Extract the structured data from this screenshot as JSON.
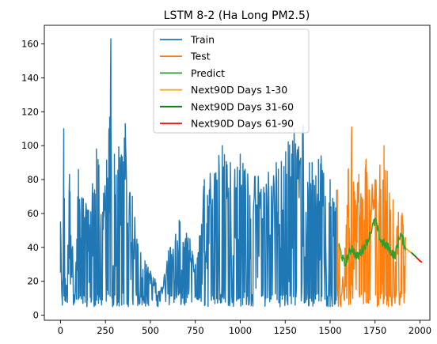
{
  "chart_data": {
    "type": "line",
    "title": "LSTM 8-2 (Ha Long PM2.5)",
    "xlabel": "",
    "ylabel": "",
    "xlim": [
      -90,
      2055
    ],
    "ylim": [
      -3,
      171
    ],
    "xticks": [
      0,
      250,
      500,
      750,
      1000,
      1250,
      1500,
      1750,
      2000
    ],
    "yticks": [
      0,
      20,
      40,
      60,
      80,
      100,
      120,
      140,
      160
    ],
    "grid": false,
    "legend_position": "top-center",
    "series": [
      {
        "name": "Train",
        "color": "#1f77b4",
        "x_range": [
          0,
          1537
        ],
        "keypoints": [
          {
            "x": 0,
            "y": 55
          },
          {
            "x": 10,
            "y": 6
          },
          {
            "x": 18,
            "y": 110
          },
          {
            "x": 30,
            "y": 8
          },
          {
            "x": 50,
            "y": 83
          },
          {
            "x": 80,
            "y": 10
          },
          {
            "x": 100,
            "y": 86
          },
          {
            "x": 150,
            "y": 62
          },
          {
            "x": 200,
            "y": 98
          },
          {
            "x": 240,
            "y": 72
          },
          {
            "x": 270,
            "y": 110
          },
          {
            "x": 280,
            "y": 163
          },
          {
            "x": 290,
            "y": 5
          },
          {
            "x": 300,
            "y": 95
          },
          {
            "x": 360,
            "y": 113
          },
          {
            "x": 400,
            "y": 70
          },
          {
            "x": 430,
            "y": 42
          },
          {
            "x": 470,
            "y": 32
          },
          {
            "x": 500,
            "y": 26
          },
          {
            "x": 560,
            "y": 16
          },
          {
            "x": 600,
            "y": 38
          },
          {
            "x": 660,
            "y": 56
          },
          {
            "x": 720,
            "y": 45
          },
          {
            "x": 750,
            "y": 30
          },
          {
            "x": 800,
            "y": 80
          },
          {
            "x": 900,
            "y": 100
          },
          {
            "x": 1000,
            "y": 95
          },
          {
            "x": 1100,
            "y": 82
          },
          {
            "x": 1200,
            "y": 90
          },
          {
            "x": 1300,
            "y": 110
          },
          {
            "x": 1350,
            "y": 112
          },
          {
            "x": 1400,
            "y": 90
          },
          {
            "x": 1450,
            "y": 94
          },
          {
            "x": 1500,
            "y": 80
          },
          {
            "x": 1537,
            "y": 74
          }
        ]
      },
      {
        "name": "Test",
        "color": "#ff7f0e",
        "x_range": [
          1537,
          1921
        ],
        "keypoints": [
          {
            "x": 1540,
            "y": 74
          },
          {
            "x": 1560,
            "y": 5
          },
          {
            "x": 1600,
            "y": 85
          },
          {
            "x": 1620,
            "y": 111
          },
          {
            "x": 1660,
            "y": 83
          },
          {
            "x": 1700,
            "y": 92
          },
          {
            "x": 1750,
            "y": 80
          },
          {
            "x": 1800,
            "y": 100
          },
          {
            "x": 1850,
            "y": 68
          },
          {
            "x": 1900,
            "y": 60
          },
          {
            "x": 1920,
            "y": 46
          }
        ]
      },
      {
        "name": "Predict",
        "color": "#2ca02c",
        "x_range": [
          1545,
          1921
        ],
        "keypoints": [
          {
            "x": 1545,
            "y": 42
          },
          {
            "x": 1580,
            "y": 30
          },
          {
            "x": 1620,
            "y": 40
          },
          {
            "x": 1650,
            "y": 34
          },
          {
            "x": 1700,
            "y": 42
          },
          {
            "x": 1750,
            "y": 56
          },
          {
            "x": 1780,
            "y": 44
          },
          {
            "x": 1820,
            "y": 40
          },
          {
            "x": 1860,
            "y": 35
          },
          {
            "x": 1890,
            "y": 48
          },
          {
            "x": 1921,
            "y": 40
          }
        ]
      },
      {
        "name": "Next90D Days 1-30",
        "color": "#ffa500",
        "x": [
          1922,
          1930,
          1940,
          1951
        ],
        "y": [
          39.5,
          38.6,
          37.7,
          37.0
        ]
      },
      {
        "name": "Next90D Days 31-60",
        "color": "#008000",
        "x": [
          1951,
          1960,
          1970,
          1981
        ],
        "y": [
          37.0,
          36.2,
          35.1,
          34.0
        ]
      },
      {
        "name": "Next90D Days 61-90",
        "color": "#ff0000",
        "x": [
          1981,
          1990,
          2000,
          2011
        ],
        "y": [
          34.0,
          33.0,
          32.0,
          31.2
        ]
      }
    ]
  }
}
